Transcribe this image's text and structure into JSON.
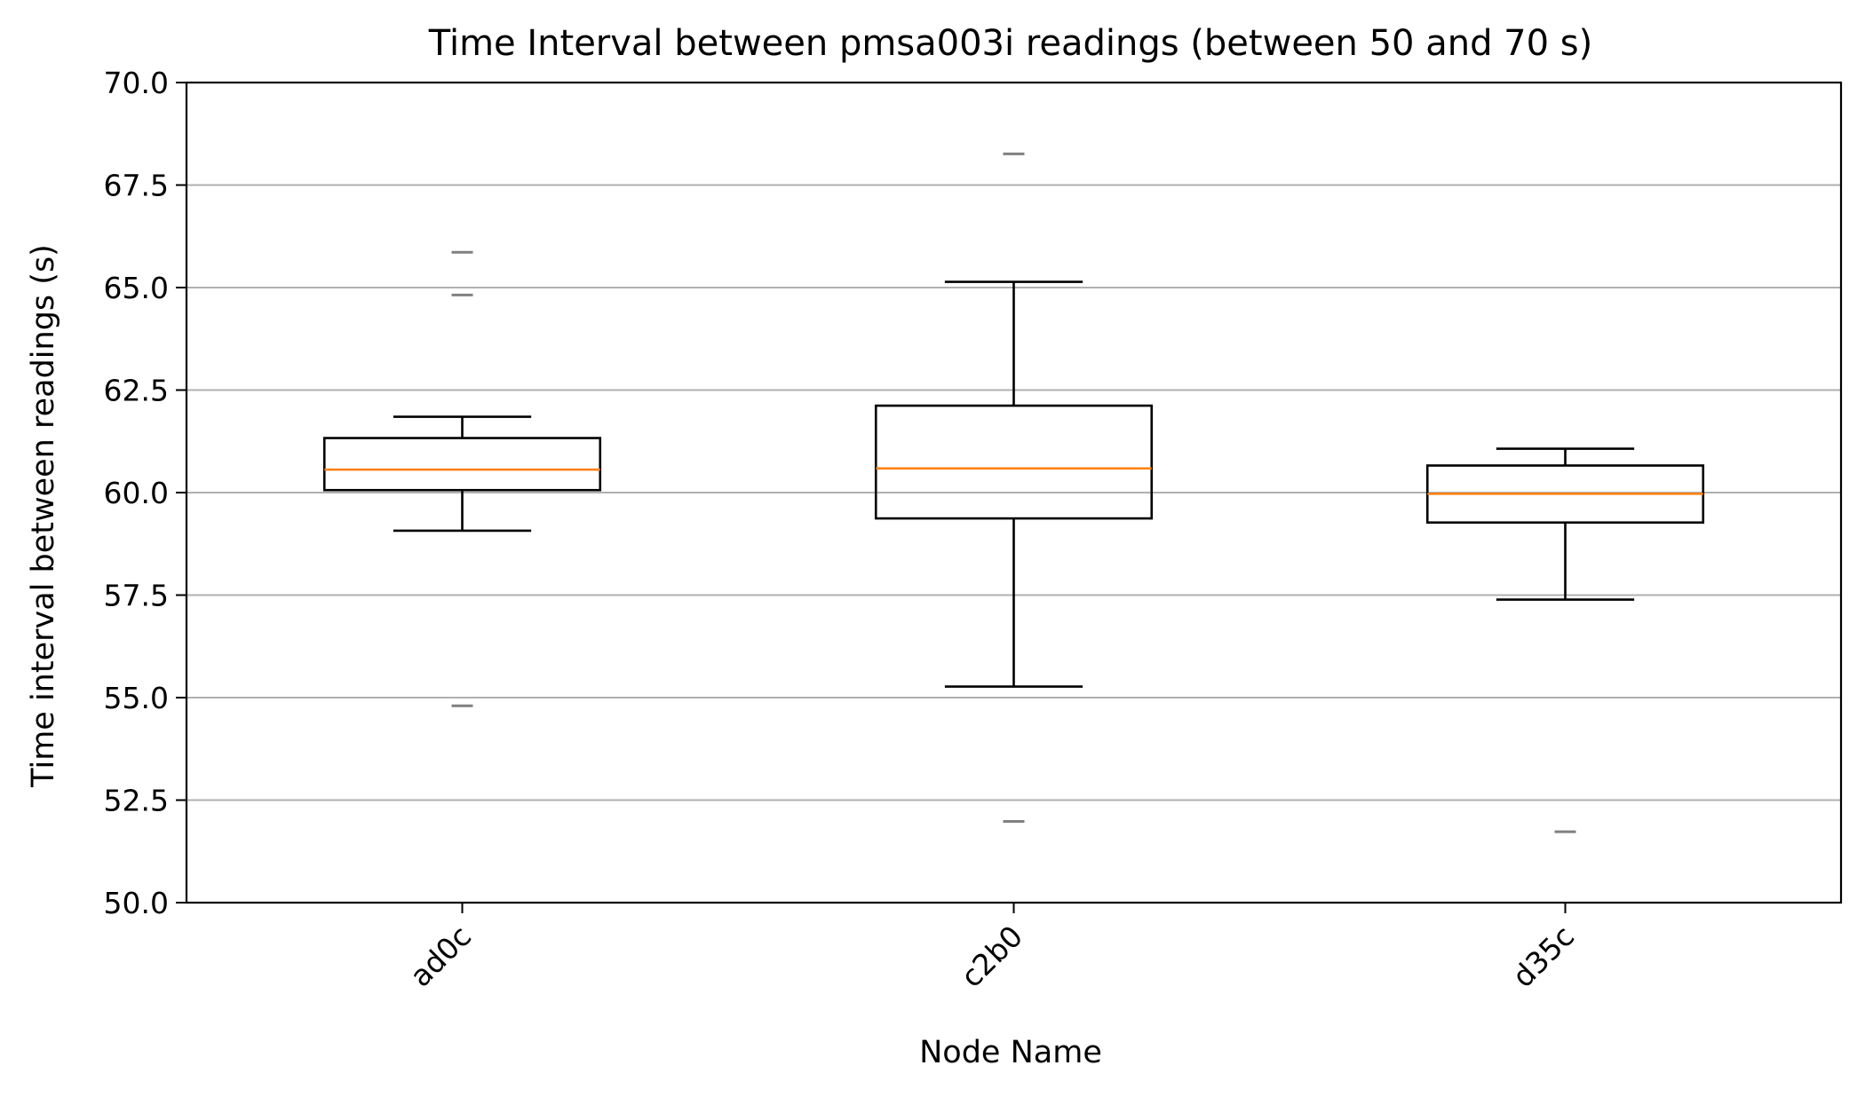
{
  "chart_data": {
    "type": "box",
    "title": "Time Interval between pmsa003i readings (between 50 and 70 s)",
    "xlabel": "Node Name",
    "ylabel": "Time interval between readings (s)",
    "ylim": [
      50,
      70
    ],
    "yticks": [
      "50.0",
      "52.5",
      "55.0",
      "57.5",
      "60.0",
      "62.5",
      "65.0",
      "67.5",
      "70.0"
    ],
    "grid": "horizontal",
    "categories": [
      "ad0c",
      "c2b0",
      "d35c"
    ],
    "boxes": [
      {
        "name": "ad0c",
        "whisker_low": 59.07,
        "q1": 60.06,
        "median": 60.56,
        "q3": 61.33,
        "whisker_high": 61.85,
        "outliers": [
          54.8,
          64.82,
          65.86
        ]
      },
      {
        "name": "c2b0",
        "whisker_low": 55.27,
        "q1": 59.37,
        "median": 60.59,
        "q3": 62.12,
        "whisker_high": 65.14,
        "outliers": [
          51.98,
          68.26
        ]
      },
      {
        "name": "d35c",
        "whisker_low": 57.39,
        "q1": 59.27,
        "median": 59.97,
        "q3": 60.66,
        "whisker_high": 61.07,
        "outliers": [
          51.73
        ]
      }
    ],
    "colors": {
      "box": "#000000",
      "median": "#ff7f0e",
      "grid": "#b0b0b0",
      "outlier": "#808080"
    }
  }
}
